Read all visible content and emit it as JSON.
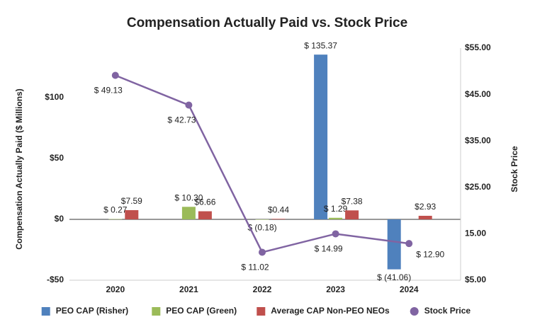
{
  "chart_data": {
    "type": "bar_line",
    "title": "Compensation Actually Paid vs. Stock Price",
    "y_label": "Compensation Actually Paid ($ Millions)",
    "y2_label": "Stock Price",
    "categories": [
      "2020",
      "2021",
      "2022",
      "2023",
      "2024"
    ],
    "ylim": [
      -50,
      140.7
    ],
    "yticks": [
      {
        "value": -50,
        "label": "-$50"
      },
      {
        "value": 0,
        "label": "$0"
      },
      {
        "value": 50,
        "label": "$50"
      },
      {
        "value": 100,
        "label": "$100"
      }
    ],
    "y2lim": [
      5,
      55
    ],
    "y2ticks": [
      {
        "value": 5,
        "label": "$5.00"
      },
      {
        "value": 15,
        "label": "15.00"
      },
      {
        "value": 25,
        "label": "$25.00"
      },
      {
        "value": 35,
        "label": "$35.00"
      },
      {
        "value": 45,
        "label": "$45.00"
      },
      {
        "value": 55,
        "label": "$55.00"
      }
    ],
    "legend": "bottom",
    "series": [
      {
        "name": "PEO CAP (Risher)",
        "color": "#4f81bd",
        "type": "bar",
        "values": [
          null,
          null,
          null,
          135.37,
          -41.06
        ],
        "value_labels": [
          null,
          null,
          null,
          "$ 135.37",
          "$ (41.06)"
        ]
      },
      {
        "name": "PEO CAP (Green)",
        "color": "#9bbb59",
        "type": "bar",
        "values": [
          0.27,
          10.3,
          -0.18,
          1.29,
          null
        ],
        "value_labels": [
          "$ 0.27",
          "$ 10.30",
          "$ (0.18)",
          "$ 1.29",
          null
        ]
      },
      {
        "name": "Average CAP Non-PEO NEOs",
        "color": "#c0504d",
        "type": "bar",
        "values": [
          7.59,
          6.66,
          0.44,
          7.38,
          2.93
        ],
        "value_labels": [
          "$7.59",
          "$6.66",
          "$0.44",
          "$7.38",
          "$2.93"
        ]
      },
      {
        "name": "Stock Price",
        "color": "#8064a2",
        "type": "line",
        "axis": "y2",
        "values": [
          49.13,
          42.73,
          11.02,
          14.99,
          12.9
        ],
        "value_labels": [
          "$ 49.13",
          "$ 42.73",
          "$ 11.02",
          "$ 14.99",
          "$ 12.90"
        ]
      }
    ]
  }
}
